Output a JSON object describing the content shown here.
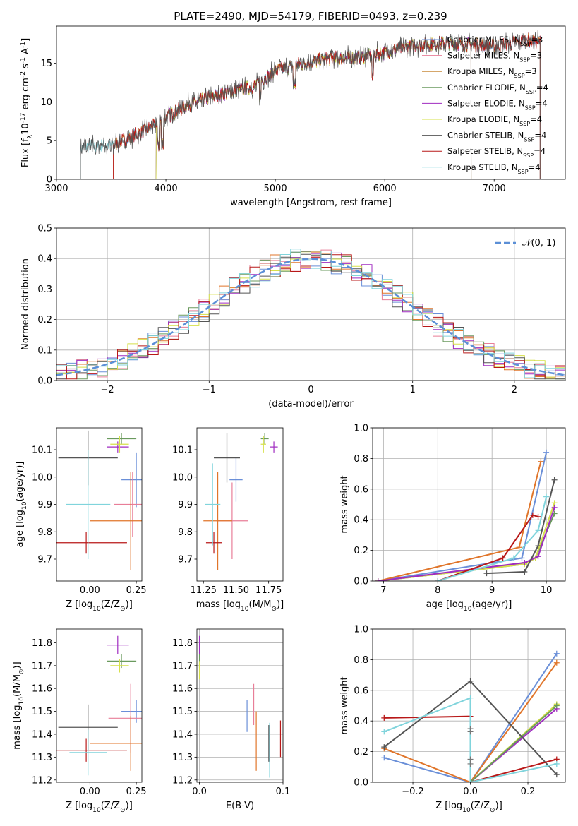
{
  "figure_title": "PLATE=2490, MJD=54179, FIBERID=0493, z=0.239",
  "colors": {
    "Chabrier MILES": "#6a8fd8",
    "Salpeter MILES": "#e87e98",
    "Kroupa MILES": "#c88a3a",
    "Chabrier ELODIE": "#6a9a5e",
    "Salpeter ELODIE": "#a02cc0",
    "Kroupa ELODIE": "#d6e04a",
    "Chabrier STELIB": "#555555",
    "Salpeter STELIB": "#b81818",
    "Kroupa STELIB": "#80d4dc",
    "orange_fit": "#e0752a",
    "normal_curve": "#5b8fd6"
  },
  "chart_data": [
    {
      "id": "spectrum",
      "type": "line",
      "xlabel": "wavelength [Angstrom, rest frame]",
      "ylabel": "Flux [f$_\\lambda$10$^{-17}$ erg cm$^{-2}$ s$^{-1}$ A$^{-1}$]",
      "xlim": [
        3000,
        7650
      ],
      "ylim": [
        0,
        19.8
      ],
      "xticks": [
        3000,
        4000,
        5000,
        6000,
        7000
      ],
      "yticks": [
        0,
        5,
        10,
        15
      ],
      "legend_placement": "right",
      "continuum_knots": [
        [
          3220,
          4.1
        ],
        [
          3500,
          4.4
        ],
        [
          3700,
          5.6
        ],
        [
          3900,
          7.0
        ],
        [
          4000,
          8.0
        ],
        [
          4200,
          9.6
        ],
        [
          4500,
          11.0
        ],
        [
          4800,
          12.0
        ],
        [
          5000,
          14.0
        ],
        [
          5200,
          14.8
        ],
        [
          5500,
          15.6
        ],
        [
          5800,
          15.8
        ],
        [
          6000,
          16.4
        ],
        [
          6300,
          17.4
        ],
        [
          6600,
          17.6
        ],
        [
          7000,
          17.2
        ],
        [
          7300,
          18.0
        ],
        [
          7420,
          17.8
        ]
      ],
      "series": [
        {
          "name": "Chabrier MILES, N$_{SSP}$=3",
          "start": 3520,
          "end": 7420
        },
        {
          "name": "Salpeter MILES, N$_{SSP}$=3",
          "start": 3520,
          "end": 7420
        },
        {
          "name": "Kroupa MILES, N$_{SSP}$=3",
          "start": 3520,
          "end": 7420
        },
        {
          "name": "Chabrier ELODIE, N$_{SSP}$=4",
          "start": 3910,
          "end": 6790
        },
        {
          "name": "Salpeter ELODIE, N$_{SSP}$=4",
          "start": 3910,
          "end": 6790
        },
        {
          "name": "Kroupa ELODIE, N$_{SSP}$=4",
          "start": 3910,
          "end": 6790
        },
        {
          "name": "Chabrier STELIB, N$_{SSP}$=4",
          "start": 3220,
          "end": 7420
        },
        {
          "name": "Salpeter STELIB, N$_{SSP}$=4",
          "start": 3520,
          "end": 7420
        },
        {
          "name": "Kroupa STELIB, N$_{SSP}$=4",
          "start": 3220,
          "end": 7420
        }
      ]
    },
    {
      "id": "residuals",
      "type": "step",
      "xlabel": "(data-model)/error",
      "ylabel": "Normed distribution",
      "xlim": [
        -2.5,
        2.5
      ],
      "ylim": [
        0,
        0.5
      ],
      "xticks": [
        -2,
        -1,
        0,
        1,
        2
      ],
      "yticks": [
        0.0,
        0.1,
        0.2,
        0.3,
        0.4,
        0.5
      ],
      "grid": true,
      "bin_width": 0.1,
      "reference_curve": {
        "name": "$\\mathcal{N}(0,1)$",
        "label": "𝒩(0, 1)",
        "mean": 0,
        "sigma": 1
      },
      "legend_placement": "top-right"
    },
    {
      "id": "age_vs_Z",
      "type": "errorbar",
      "xlabel": "Z [log$_{10}$(Z/Z$_\\odot$)]",
      "ylabel": "age  [log$_{10}$(age/yr)]",
      "xlim": [
        -0.18,
        0.28
      ],
      "ylim": [
        9.62,
        10.18
      ],
      "xticks": [
        0.0,
        0.25
      ],
      "yticks": [
        9.7,
        9.8,
        9.9,
        10.0,
        10.1
      ],
      "points": [
        {
          "s": "Chabrier MILES",
          "x": 0.25,
          "y": 9.99,
          "xerr": 0.08,
          "yerr": 0.1
        },
        {
          "s": "Salpeter MILES",
          "x": 0.23,
          "y": 9.9,
          "xerr": 0.1,
          "yerr": 0.12
        },
        {
          "s": "Kroupa MILES",
          "x": 0.22,
          "y": 9.84,
          "xerr": 0.22,
          "yerr": 0.18
        },
        {
          "s": "Chabrier ELODIE",
          "x": 0.17,
          "y": 10.14,
          "xerr": 0.08,
          "yerr": 0.02
        },
        {
          "s": "Salpeter ELODIE",
          "x": 0.15,
          "y": 10.11,
          "xerr": 0.06,
          "yerr": 0.02
        },
        {
          "s": "Kroupa ELODIE",
          "x": 0.16,
          "y": 10.12,
          "xerr": 0.05,
          "yerr": 0.03
        },
        {
          "s": "Chabrier STELIB",
          "x": -0.01,
          "y": 10.07,
          "xerr": 0.16,
          "yerr": 0.1
        },
        {
          "s": "Salpeter STELIB",
          "x": -0.02,
          "y": 9.76,
          "xerr": 0.22,
          "yerr": 0.04
        },
        {
          "s": "Kroupa STELIB",
          "x": -0.01,
          "y": 9.9,
          "xerr": 0.12,
          "yerr": 0.2
        }
      ]
    },
    {
      "id": "age_vs_mass",
      "type": "errorbar",
      "xlabel": "mass [log$_{10}$(M/M$_\\odot$)]",
      "ylabel": "",
      "xlim": [
        11.2,
        11.86
      ],
      "ylim": [
        9.62,
        10.18
      ],
      "xticks": [
        11.25,
        11.5,
        11.75
      ],
      "yticks": [
        9.7,
        9.8,
        9.9,
        10.0,
        10.1
      ],
      "points": [
        {
          "s": "Chabrier MILES",
          "x": 11.5,
          "y": 9.99,
          "xerr": 0.05,
          "yerr": 0.08
        },
        {
          "s": "Salpeter MILES",
          "x": 11.47,
          "y": 9.84,
          "xerr": 0.12,
          "yerr": 0.14
        },
        {
          "s": "Kroupa MILES",
          "x": 11.36,
          "y": 9.84,
          "xerr": 0.11,
          "yerr": 0.18
        },
        {
          "s": "Chabrier ELODIE",
          "x": 11.72,
          "y": 10.14,
          "xerr": 0.03,
          "yerr": 0.02
        },
        {
          "s": "Salpeter ELODIE",
          "x": 11.79,
          "y": 10.11,
          "xerr": 0.03,
          "yerr": 0.02
        },
        {
          "s": "Kroupa ELODIE",
          "x": 11.71,
          "y": 10.12,
          "xerr": 0.02,
          "yerr": 0.03
        },
        {
          "s": "Chabrier STELIB",
          "x": 11.43,
          "y": 10.07,
          "xerr": 0.1,
          "yerr": 0.09
        },
        {
          "s": "Salpeter STELIB",
          "x": 11.33,
          "y": 9.76,
          "xerr": 0.06,
          "yerr": 0.04
        },
        {
          "s": "Kroupa STELIB",
          "x": 11.32,
          "y": 9.9,
          "xerr": 0.06,
          "yerr": 0.15
        }
      ]
    },
    {
      "id": "mass_weight_vs_age",
      "type": "line",
      "xlabel": "age  [log$_{10}$(age/yr)]",
      "ylabel": "mass weight",
      "xlim": [
        6.8,
        10.35
      ],
      "ylim": [
        0,
        1.0
      ],
      "xticks": [
        7,
        8,
        9,
        10
      ],
      "yticks": [
        0.0,
        0.2,
        0.4,
        0.6,
        0.8,
        1.0
      ],
      "grid": true,
      "series": [
        {
          "s": "Chabrier MILES",
          "points": [
            [
              6.9,
              0.0
            ],
            [
              9.55,
              0.15
            ],
            [
              10.0,
              0.84
            ]
          ]
        },
        {
          "s": "orange_fit",
          "points": [
            [
              6.9,
              0.0
            ],
            [
              9.5,
              0.22
            ],
            [
              9.9,
              0.78
            ]
          ]
        },
        {
          "s": "Chabrier ELODIE",
          "points": [
            [
              6.9,
              0.0
            ],
            [
              9.6,
              0.11
            ],
            [
              9.8,
              0.15
            ],
            [
              10.15,
              0.44
            ]
          ]
        },
        {
          "s": "Kroupa ELODIE",
          "points": [
            [
              6.9,
              0.0
            ],
            [
              9.6,
              0.11
            ],
            [
              9.8,
              0.15
            ],
            [
              10.15,
              0.51
            ]
          ]
        },
        {
          "s": "Salpeter ELODIE",
          "points": [
            [
              6.9,
              0.0
            ],
            [
              9.6,
              0.12
            ],
            [
              9.85,
              0.16
            ],
            [
              10.15,
              0.48
            ]
          ]
        },
        {
          "s": "Chabrier STELIB",
          "points": [
            [
              8.9,
              0.05
            ],
            [
              9.6,
              0.06
            ],
            [
              9.85,
              0.23
            ],
            [
              10.15,
              0.66
            ]
          ]
        },
        {
          "s": "Salpeter STELIB",
          "points": [
            [
              8.0,
              0.0
            ],
            [
              9.2,
              0.15
            ],
            [
              9.75,
              0.43
            ],
            [
              9.85,
              0.42
            ]
          ]
        },
        {
          "s": "Kroupa STELIB",
          "points": [
            [
              8.0,
              0.0
            ],
            [
              9.4,
              0.15
            ],
            [
              9.85,
              0.33
            ],
            [
              10.0,
              0.55
            ]
          ]
        }
      ]
    },
    {
      "id": "mass_vs_Z",
      "type": "errorbar",
      "xlabel": "Z [log$_{10}$(Z/Z$_\\odot$)]",
      "ylabel": "mass [log$_{10}$(M/M$_\\odot$)]",
      "xlim": [
        -0.18,
        0.28
      ],
      "ylim": [
        11.19,
        11.86
      ],
      "xticks": [
        0.0,
        0.25
      ],
      "yticks": [
        11.2,
        11.3,
        11.4,
        11.5,
        11.6,
        11.7,
        11.8
      ],
      "points": [
        {
          "s": "Chabrier MILES",
          "x": 0.25,
          "y": 11.5,
          "xerr": 0.08,
          "yerr": 0.05
        },
        {
          "s": "Salpeter MILES",
          "x": 0.22,
          "y": 11.47,
          "xerr": 0.12,
          "yerr": 0.15
        },
        {
          "s": "Kroupa MILES",
          "x": 0.22,
          "y": 11.36,
          "xerr": 0.22,
          "yerr": 0.12
        },
        {
          "s": "Chabrier ELODIE",
          "x": 0.17,
          "y": 11.72,
          "xerr": 0.08,
          "yerr": 0.03
        },
        {
          "s": "Salpeter ELODIE",
          "x": 0.15,
          "y": 11.79,
          "xerr": 0.06,
          "yerr": 0.04
        },
        {
          "s": "Kroupa ELODIE",
          "x": 0.16,
          "y": 11.7,
          "xerr": 0.05,
          "yerr": 0.03
        },
        {
          "s": "Chabrier STELIB",
          "x": -0.01,
          "y": 11.43,
          "xerr": 0.16,
          "yerr": 0.1
        },
        {
          "s": "Salpeter STELIB",
          "x": -0.02,
          "y": 11.33,
          "xerr": 0.22,
          "yerr": 0.05
        },
        {
          "s": "Kroupa STELIB",
          "x": -0.01,
          "y": 11.32,
          "xerr": 0.1,
          "yerr": 0.1
        }
      ]
    },
    {
      "id": "mass_vs_EBV",
      "type": "errorbar",
      "xlabel": "E(B-V)",
      "ylabel": "",
      "xlim": [
        -0.003,
        0.1
      ],
      "ylim": [
        11.19,
        11.86
      ],
      "xticks": [
        0.0,
        0.1
      ],
      "yticks": [
        11.2,
        11.3,
        11.4,
        11.5,
        11.6,
        11.7,
        11.8
      ],
      "grid": true,
      "points": [
        {
          "s": "Chabrier MILES",
          "x": 0.057,
          "y": 11.48,
          "xerr": 0,
          "yerr": 0.07
        },
        {
          "s": "Salpeter MILES",
          "x": 0.065,
          "y": 11.53,
          "xerr": 0,
          "yerr": 0.09
        },
        {
          "s": "Kroupa MILES",
          "x": 0.068,
          "y": 11.37,
          "xerr": 0,
          "yerr": 0.13
        },
        {
          "s": "Chabrier ELODIE",
          "x": 0.0,
          "y": 11.72,
          "xerr": 0,
          "yerr": 0.03
        },
        {
          "s": "Salpeter ELODIE",
          "x": 0.0,
          "y": 11.79,
          "xerr": 0,
          "yerr": 0.04
        },
        {
          "s": "Kroupa ELODIE",
          "x": 0.0,
          "y": 11.68,
          "xerr": 0,
          "yerr": 0.04
        },
        {
          "s": "Chabrier STELIB",
          "x": 0.083,
          "y": 11.36,
          "xerr": 0,
          "yerr": 0.08
        },
        {
          "s": "Salpeter STELIB",
          "x": 0.097,
          "y": 11.38,
          "xerr": 0,
          "yerr": 0.08
        },
        {
          "s": "Kroupa STELIB",
          "x": 0.084,
          "y": 11.33,
          "xerr": 0,
          "yerr": 0.12
        }
      ]
    },
    {
      "id": "mass_weight_vs_Z",
      "type": "line",
      "xlabel": "Z [log$_{10}$(Z/Z$_\\odot$)]",
      "ylabel": "mass weight",
      "xlim": [
        -0.34,
        0.33
      ],
      "ylim": [
        0,
        1.0
      ],
      "xticks": [
        -0.2,
        0.0,
        0.2
      ],
      "yticks": [
        0.0,
        0.2,
        0.4,
        0.6,
        0.8,
        1.0
      ],
      "grid": true,
      "series": [
        {
          "s": "Chabrier MILES",
          "points": [
            [
              -0.3,
              0.16
            ],
            [
              0.0,
              0.0
            ],
            [
              0.3,
              0.84
            ]
          ]
        },
        {
          "s": "orange_fit",
          "points": [
            [
              -0.3,
              0.22
            ],
            [
              0.0,
              0.0
            ],
            [
              0.3,
              0.78
            ]
          ]
        },
        {
          "s": "Kroupa ELODIE",
          "points": [
            [
              0.0,
              0.0
            ],
            [
              0.3,
              0.51
            ]
          ]
        },
        {
          "s": "Salpeter ELODIE",
          "points": [
            [
              0.0,
              0.0
            ],
            [
              0.3,
              0.48
            ]
          ]
        },
        {
          "s": "Chabrier ELODIE",
          "points": [
            [
              0.0,
              0.0
            ],
            [
              0.3,
              0.5
            ]
          ]
        },
        {
          "s": "Chabrier STELIB",
          "points": [
            [
              -0.3,
              0.23
            ],
            [
              0.0,
              0.66
            ],
            [
              0.3,
              0.05
            ]
          ]
        },
        {
          "s": "Salpeter STELIB",
          "points": [
            [
              -0.3,
              0.42
            ],
            [
              0.0,
              0.43
            ],
            [
              0.0,
              0.0
            ],
            [
              0.3,
              0.15
            ]
          ]
        },
        {
          "s": "Kroupa STELIB",
          "points": [
            [
              -0.3,
              0.33
            ],
            [
              0.0,
              0.55
            ],
            [
              0.0,
              0.0
            ],
            [
              0.3,
              0.12
            ]
          ]
        }
      ],
      "extra_markers": [
        [
          0.0,
          0.15
        ],
        [
          0.0,
          0.12
        ],
        [
          0.0,
          0.33
        ],
        [
          0.0,
          0.35
        ]
      ]
    }
  ]
}
